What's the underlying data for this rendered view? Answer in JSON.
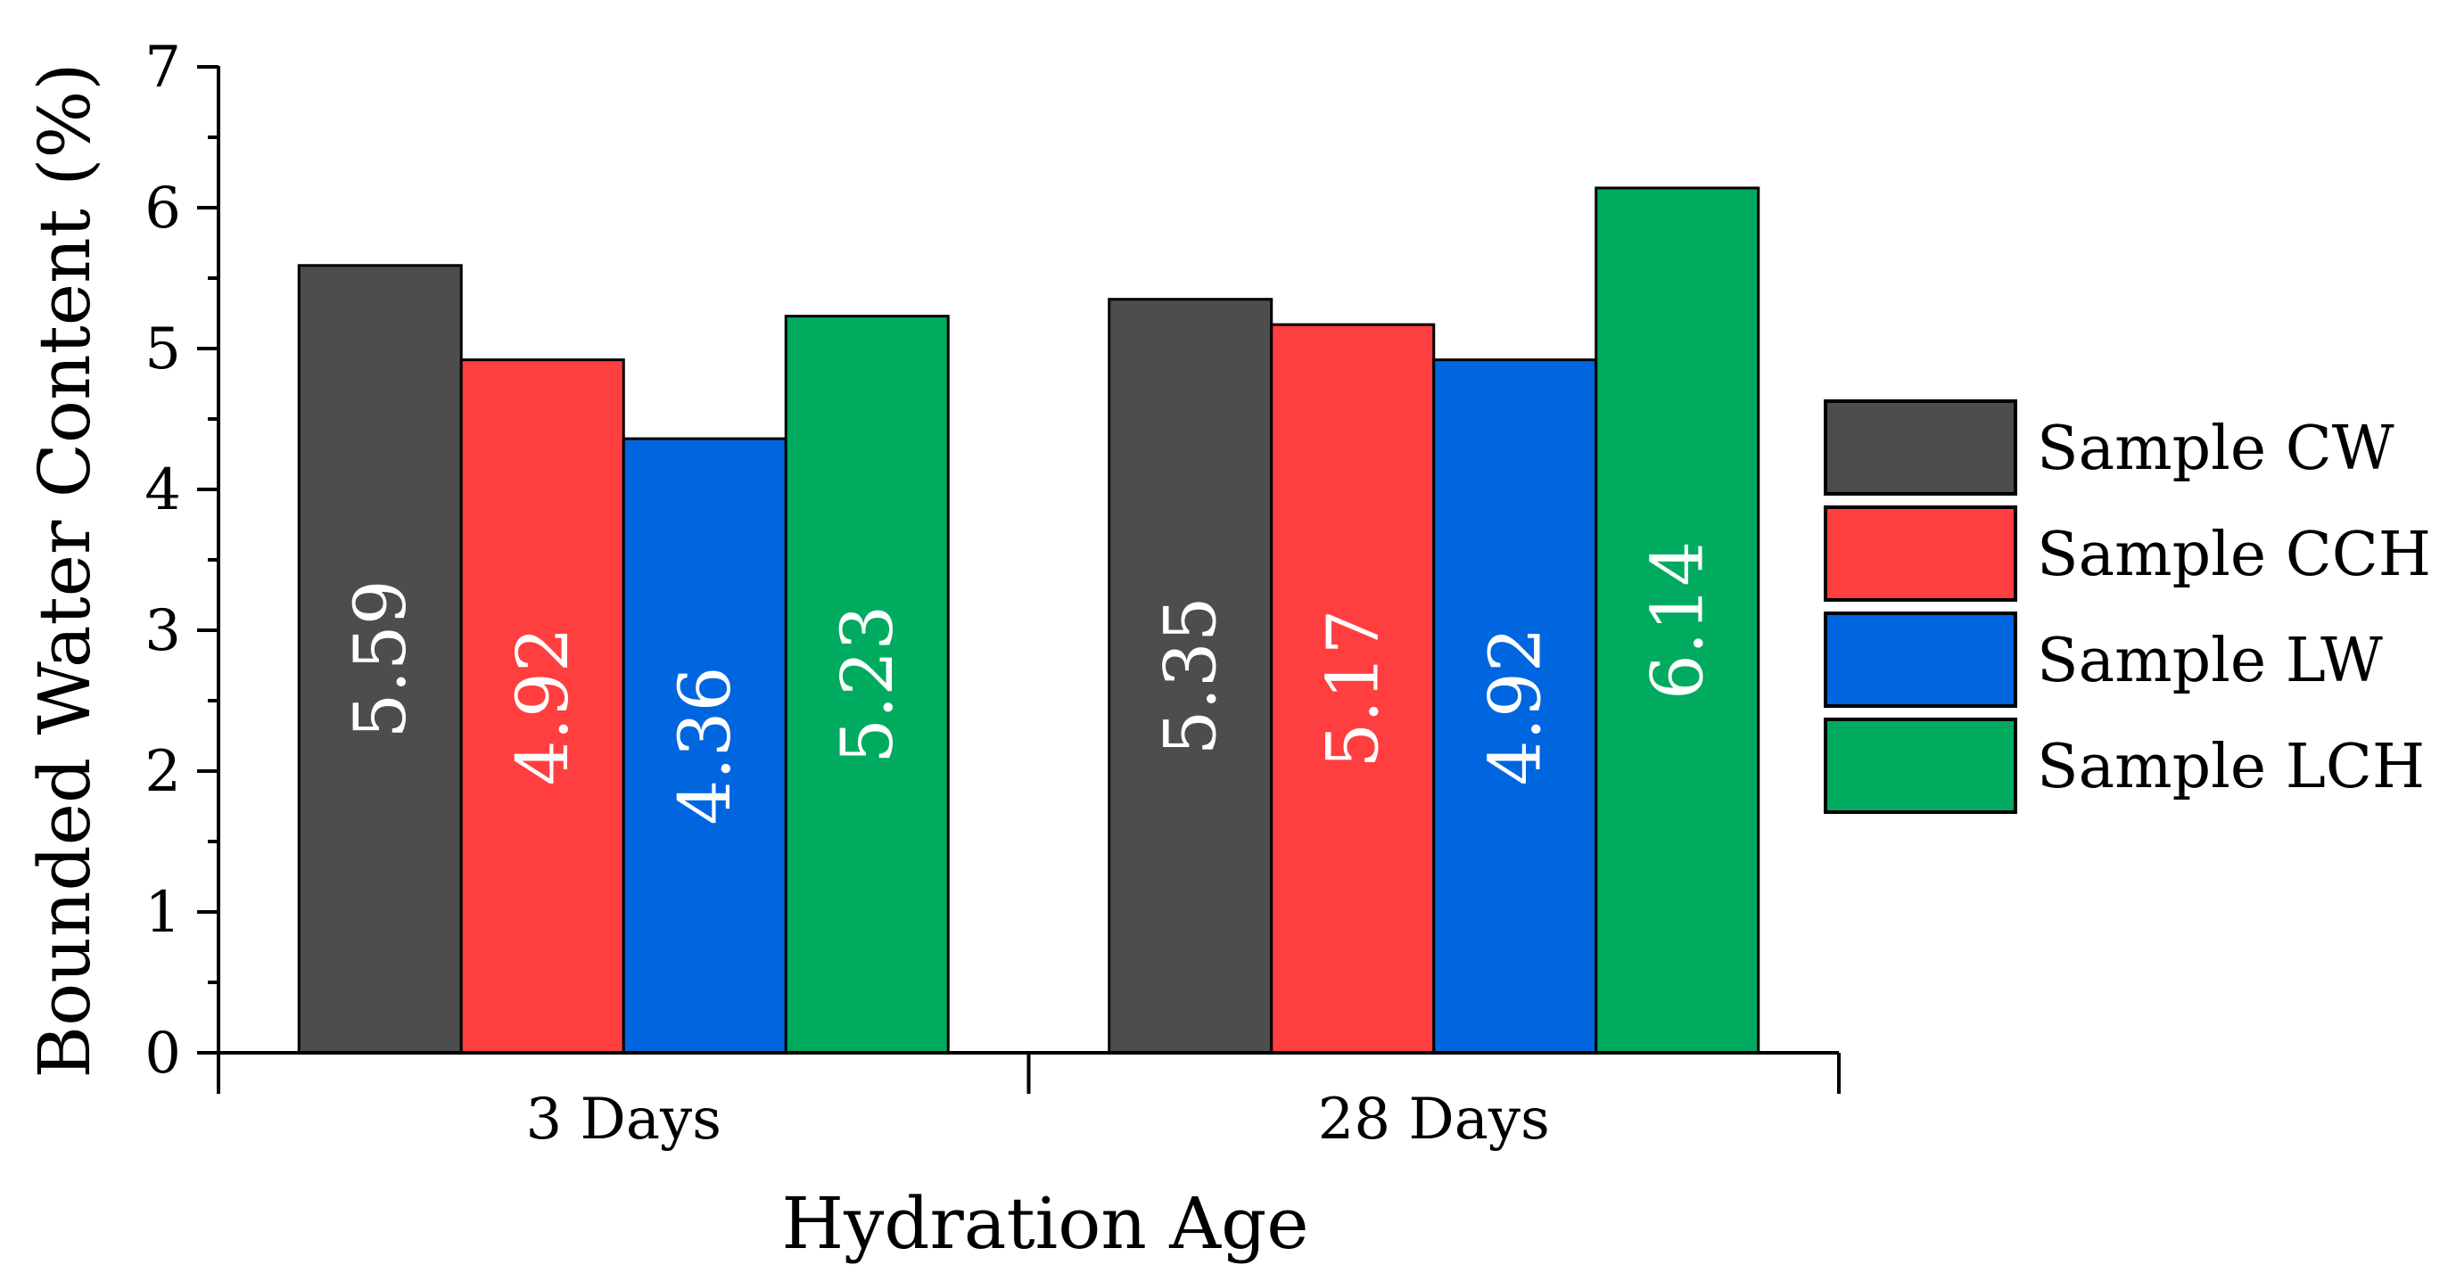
{
  "chart_data": {
    "type": "bar",
    "title": "",
    "xlabel": "Hydration Age",
    "ylabel": "Bounded Water Content (%)",
    "ylim": [
      0,
      7
    ],
    "yticks": [
      "0",
      "1",
      "2",
      "3",
      "4",
      "5",
      "6",
      "7"
    ],
    "categories": [
      "3 Days",
      "28 Days"
    ],
    "series": [
      {
        "name": "Sample CW",
        "color": "#4d4d4d",
        "values": [
          5.59,
          5.35
        ],
        "labels": [
          "5.59",
          "5.35"
        ]
      },
      {
        "name": "Sample CCH",
        "color": "#ff3f3f",
        "values": [
          4.92,
          5.17
        ],
        "labels": [
          "4.92",
          "5.17"
        ]
      },
      {
        "name": "Sample LW",
        "color": "#0066e0",
        "values": [
          4.36,
          4.92
        ],
        "labels": [
          "4.36",
          "4.92"
        ]
      },
      {
        "name": "Sample LCH",
        "color": "#00ab60",
        "values": [
          5.23,
          6.14
        ],
        "labels": [
          "5.23",
          "6.14"
        ]
      }
    ],
    "legend_position": "right",
    "grid": false
  }
}
